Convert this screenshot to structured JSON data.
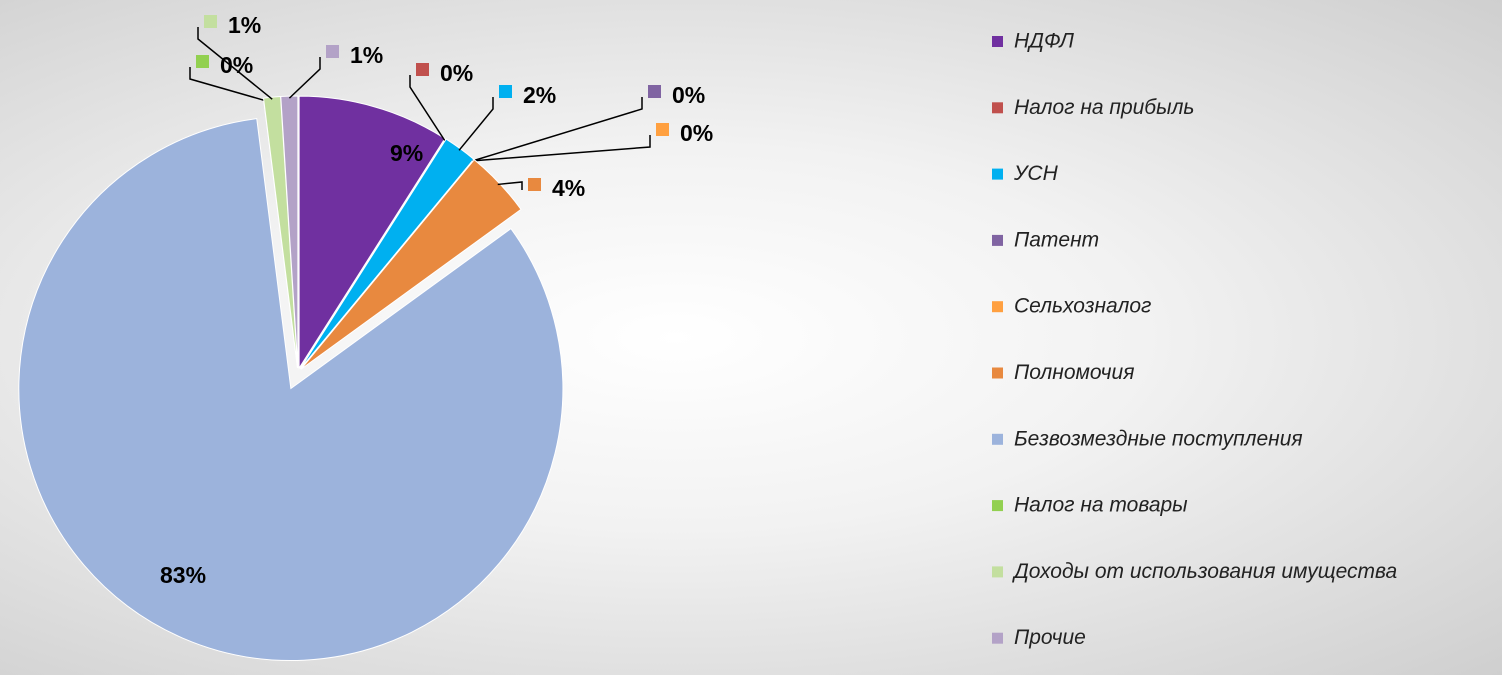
{
  "chart_data": {
    "type": "pie",
    "categories": [
      "НДФЛ",
      "Налог на прибыль",
      "УСН",
      "Патент",
      "Сельхозналог",
      "Полномочия",
      "Безвозмездные  поступления",
      "Налог на товары",
      "Доходы от использования  имущества",
      "Прочие"
    ],
    "values": [
      9,
      0,
      2,
      0,
      0,
      4,
      83,
      0,
      1,
      1
    ],
    "value_labels": [
      "9%",
      "0%",
      "2%",
      "0%",
      "0%",
      "4%",
      "83%",
      "0%",
      "1%",
      "1%"
    ],
    "colors": [
      "#7030a0",
      "#c0504d",
      "#00b0f0",
      "#8064a2",
      "#ffa040",
      "#e8893f",
      "#9cb3dc",
      "#92d050",
      "#c3df9f",
      "#b3a2c7"
    ],
    "legend": "right"
  }
}
